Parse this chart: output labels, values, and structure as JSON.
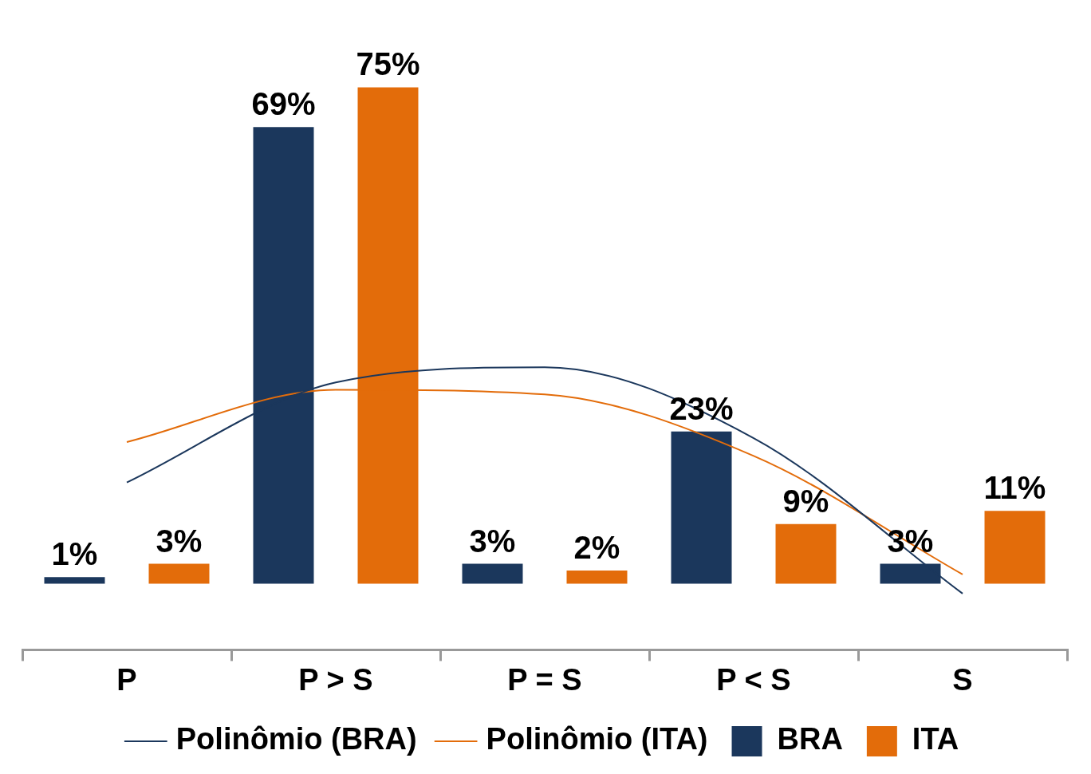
{
  "chart_data": {
    "type": "bar",
    "categories": [
      "P",
      "P > S",
      "P = S",
      "P < S",
      "S"
    ],
    "series": [
      {
        "name": "BRA",
        "color": "#1b375c",
        "values": [
          1,
          69,
          3,
          23,
          3
        ],
        "value_labels": [
          "1%",
          "69%",
          "3%",
          "23%",
          "3%"
        ]
      },
      {
        "name": "ITA",
        "color": "#e36c0a",
        "values": [
          3,
          75,
          2,
          9,
          11
        ],
        "value_labels": [
          "3%",
          "75%",
          "2%",
          "9%",
          "11%"
        ]
      },
      {
        "name": "Polinômio (BRA)",
        "type": "line",
        "color": "#1b375c",
        "values": [
          15.3,
          30.4,
          32.7,
          22.0,
          -1.5
        ]
      },
      {
        "name": "Polinômio (ITA)",
        "type": "line",
        "color": "#e36c0a",
        "values": [
          21.4,
          29.3,
          28.6,
          19.3,
          1.4
        ]
      }
    ],
    "legend": "bottom",
    "tick_labels": "x",
    "grid": false
  }
}
